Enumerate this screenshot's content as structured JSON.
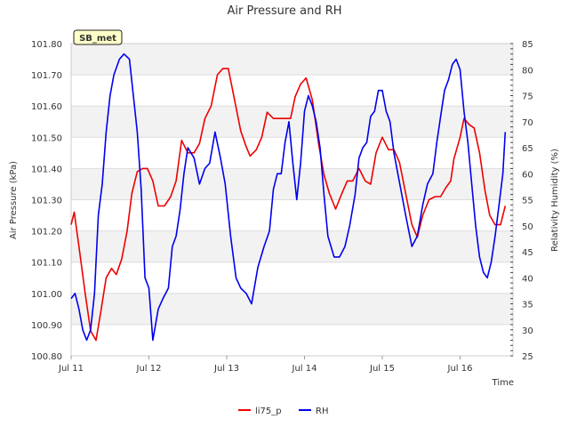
{
  "chart_data": {
    "type": "line",
    "title": "Air Pressure and RH",
    "site_label": "SB_met",
    "xlabel": "Time",
    "ylabel": "Air Pressure (kPa)",
    "y2label": "Relativity Humidity (%)",
    "x_ticks": [
      "Jul 11",
      "Jul 12",
      "Jul 13",
      "Jul 14",
      "Jul 15",
      "Jul 16"
    ],
    "x_range_days": [
      0,
      5.68
    ],
    "ylim": [
      100.8,
      101.8
    ],
    "y_ticks": [
      "100.80",
      "100.90",
      "101.00",
      "101.10",
      "101.20",
      "101.30",
      "101.40",
      "101.50",
      "101.60",
      "101.70",
      "101.80"
    ],
    "y2lim": [
      25,
      85
    ],
    "y2_ticks": [
      "25",
      "30",
      "35",
      "40",
      "45",
      "50",
      "55",
      "60",
      "65",
      "70",
      "75",
      "80",
      "85"
    ],
    "legend_position": "bottom-center",
    "series": [
      {
        "name": "li75_p",
        "axis": "left",
        "color": "#ee0000",
        "x": [
          0.0,
          0.04,
          0.1,
          0.18,
          0.25,
          0.32,
          0.38,
          0.45,
          0.52,
          0.58,
          0.65,
          0.72,
          0.78,
          0.85,
          0.92,
          0.98,
          1.05,
          1.12,
          1.2,
          1.28,
          1.35,
          1.42,
          1.5,
          1.58,
          1.65,
          1.72,
          1.8,
          1.88,
          1.95,
          2.02,
          2.1,
          2.18,
          2.25,
          2.3,
          2.38,
          2.45,
          2.52,
          2.6,
          2.68,
          2.75,
          2.82,
          2.88,
          2.95,
          3.02,
          3.1,
          3.18,
          3.25,
          3.32,
          3.4,
          3.48,
          3.55,
          3.62,
          3.7,
          3.78,
          3.85,
          3.92,
          4.0,
          4.08,
          4.15,
          4.22,
          4.3,
          4.38,
          4.45,
          4.52,
          4.6,
          4.68,
          4.75,
          4.82,
          4.88,
          4.92,
          5.0,
          5.05,
          5.12,
          5.18,
          5.25,
          5.32,
          5.38,
          5.45,
          5.52,
          5.58
        ],
        "values": [
          101.22,
          101.26,
          101.15,
          101.0,
          100.88,
          100.85,
          100.94,
          101.05,
          101.08,
          101.06,
          101.11,
          101.2,
          101.32,
          101.39,
          101.4,
          101.4,
          101.36,
          101.28,
          101.28,
          101.31,
          101.36,
          101.49,
          101.45,
          101.45,
          101.48,
          101.56,
          101.6,
          101.7,
          101.72,
          101.72,
          101.62,
          101.52,
          101.47,
          101.44,
          101.46,
          101.5,
          101.58,
          101.56,
          101.56,
          101.56,
          101.56,
          101.63,
          101.67,
          101.69,
          101.62,
          101.48,
          101.38,
          101.32,
          101.27,
          101.32,
          101.36,
          101.36,
          101.4,
          101.36,
          101.35,
          101.45,
          101.5,
          101.46,
          101.46,
          101.42,
          101.32,
          101.22,
          101.18,
          101.25,
          101.3,
          101.31,
          101.31,
          101.34,
          101.36,
          101.43,
          101.5,
          101.56,
          101.54,
          101.53,
          101.45,
          101.33,
          101.25,
          101.22,
          101.22,
          101.28
        ]
      },
      {
        "name": "RH",
        "axis": "right",
        "color": "#0000ee",
        "x": [
          0.0,
          0.05,
          0.1,
          0.15,
          0.2,
          0.25,
          0.3,
          0.35,
          0.4,
          0.45,
          0.5,
          0.55,
          0.62,
          0.68,
          0.75,
          0.8,
          0.85,
          0.9,
          0.95,
          1.0,
          1.05,
          1.12,
          1.18,
          1.25,
          1.3,
          1.35,
          1.4,
          1.45,
          1.5,
          1.58,
          1.65,
          1.72,
          1.78,
          1.85,
          1.92,
          1.98,
          2.05,
          2.12,
          2.18,
          2.25,
          2.32,
          2.4,
          2.48,
          2.55,
          2.6,
          2.65,
          2.7,
          2.75,
          2.8,
          2.85,
          2.9,
          2.95,
          3.0,
          3.05,
          3.1,
          3.15,
          3.2,
          3.25,
          3.3,
          3.38,
          3.45,
          3.52,
          3.58,
          3.65,
          3.7,
          3.75,
          3.8,
          3.85,
          3.9,
          3.95,
          4.0,
          4.05,
          4.1,
          4.15,
          4.2,
          4.25,
          4.3,
          4.38,
          4.45,
          4.52,
          4.58,
          4.65,
          4.7,
          4.75,
          4.8,
          4.85,
          4.9,
          4.95,
          5.0,
          5.05,
          5.1,
          5.15,
          5.2,
          5.25,
          5.3,
          5.35,
          5.4,
          5.45,
          5.5,
          5.55,
          5.58
        ],
        "values": [
          36.0,
          37.0,
          34.0,
          30.0,
          28.0,
          30.0,
          37.0,
          52.0,
          58.0,
          68.0,
          75.0,
          79.0,
          82.0,
          83.0,
          82.0,
          75.0,
          68.0,
          57.0,
          40.0,
          38.0,
          28.0,
          34.0,
          36.0,
          38.0,
          46.0,
          48.0,
          53.0,
          60.0,
          65.0,
          63.0,
          58.0,
          61.0,
          62.0,
          68.0,
          63.0,
          58.0,
          48.0,
          40.0,
          38.0,
          37.0,
          35.0,
          42.0,
          46.0,
          49.0,
          57.0,
          60.0,
          60.0,
          66.0,
          70.0,
          62.0,
          55.0,
          62.0,
          72.0,
          75.0,
          73.0,
          70.0,
          65.0,
          56.0,
          48.0,
          44.0,
          44.0,
          46.0,
          50.0,
          56.0,
          63.0,
          65.0,
          66.0,
          71.0,
          72.0,
          76.0,
          76.0,
          72.0,
          70.0,
          64.0,
          60.0,
          56.0,
          52.0,
          46.0,
          48.0,
          54.0,
          58.0,
          60.0,
          66.0,
          71.0,
          76.0,
          78.0,
          81.0,
          82.0,
          80.0,
          72.0,
          66.0,
          58.0,
          50.0,
          44.0,
          41.0,
          40.0,
          43.0,
          48.0,
          54.0,
          60.0,
          68.0
        ]
      }
    ]
  }
}
